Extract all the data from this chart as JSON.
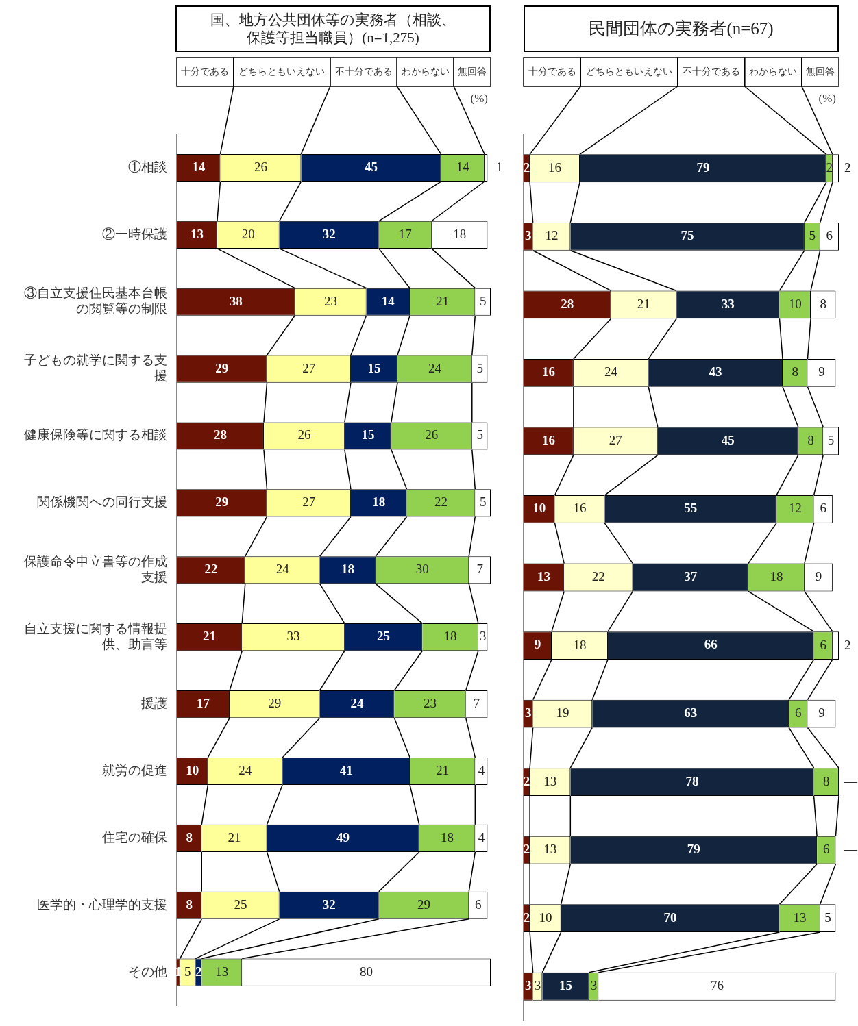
{
  "chart_data": [
    {
      "type": "bar",
      "title": "国、地方公共団体等の実務者（相談、保護等担当職員）(n=1,275)",
      "orientation": "horizontal",
      "stacked": true,
      "legend": "top",
      "data_labels": true,
      "annotations": [
        "(%)"
      ],
      "categories": [
        "①相談",
        "②一時保護",
        "③自立支援住民基本台帳の閲覧等の制限",
        "子どもの就学に関する支援",
        "健康保険等に関する相談",
        "関係機関への同行支援",
        "保護命令申立書等の作成支援",
        "自立支援に関する情報提供、助言等",
        "援護",
        "就労の促進",
        "住宅の確保",
        "医学的・心理学的支援",
        "その他"
      ],
      "series": [
        {
          "name": "十分である",
          "color": "#6b1406",
          "values": [
            14,
            13,
            38,
            29,
            28,
            29,
            22,
            21,
            17,
            10,
            8,
            8,
            1
          ]
        },
        {
          "name": "どちらともいえない",
          "color": "#ffff99",
          "values": [
            26,
            20,
            23,
            27,
            26,
            27,
            24,
            33,
            29,
            24,
            21,
            25,
            5
          ]
        },
        {
          "name": "不十分である",
          "color": "#002060",
          "values": [
            45,
            32,
            14,
            15,
            15,
            18,
            18,
            25,
            24,
            41,
            49,
            32,
            2
          ]
        },
        {
          "name": "わからない",
          "color": "#92d050",
          "values": [
            14,
            17,
            21,
            24,
            26,
            22,
            30,
            18,
            23,
            21,
            18,
            29,
            13
          ]
        },
        {
          "name": "無回答",
          "color": "#ffffff",
          "values": [
            1,
            18,
            5,
            5,
            5,
            5,
            7,
            3,
            7,
            4,
            4,
            6,
            80
          ]
        }
      ]
    },
    {
      "type": "bar",
      "title": "民間団体の実務者(n=67)",
      "orientation": "horizontal",
      "stacked": true,
      "legend": "top",
      "data_labels": true,
      "annotations": [
        "(%)"
      ],
      "categories": [
        null,
        null,
        null,
        null,
        null,
        null,
        null,
        null,
        null,
        null,
        null,
        null,
        null
      ],
      "series": [
        {
          "name": "十分である",
          "color": "#6b1406",
          "values": [
            2,
            3,
            28,
            16,
            16,
            10,
            13,
            9,
            3,
            2,
            2,
            2,
            3
          ]
        },
        {
          "name": "どちらともいえない",
          "color": "#ffffcc",
          "values": [
            16,
            12,
            21,
            24,
            27,
            16,
            22,
            18,
            19,
            13,
            13,
            10,
            3
          ]
        },
        {
          "name": "不十分である",
          "color": "#13243f",
          "values": [
            79,
            75,
            33,
            43,
            45,
            55,
            37,
            66,
            63,
            78,
            79,
            70,
            15
          ]
        },
        {
          "name": "わからない",
          "color": "#92d050",
          "values": [
            2,
            5,
            10,
            8,
            8,
            12,
            18,
            6,
            6,
            8,
            6,
            13,
            3
          ]
        },
        {
          "name": "無回答",
          "color": "#ffffff",
          "values": [
            2,
            6,
            8,
            9,
            5,
            6,
            9,
            2,
            9,
            null,
            null,
            5,
            76
          ],
          "value_labels": [
            "2",
            "6",
            "8",
            "9",
            "5",
            "6",
            "9",
            "2",
            "9",
            "—",
            "—",
            "5",
            "76"
          ]
        }
      ]
    }
  ]
}
